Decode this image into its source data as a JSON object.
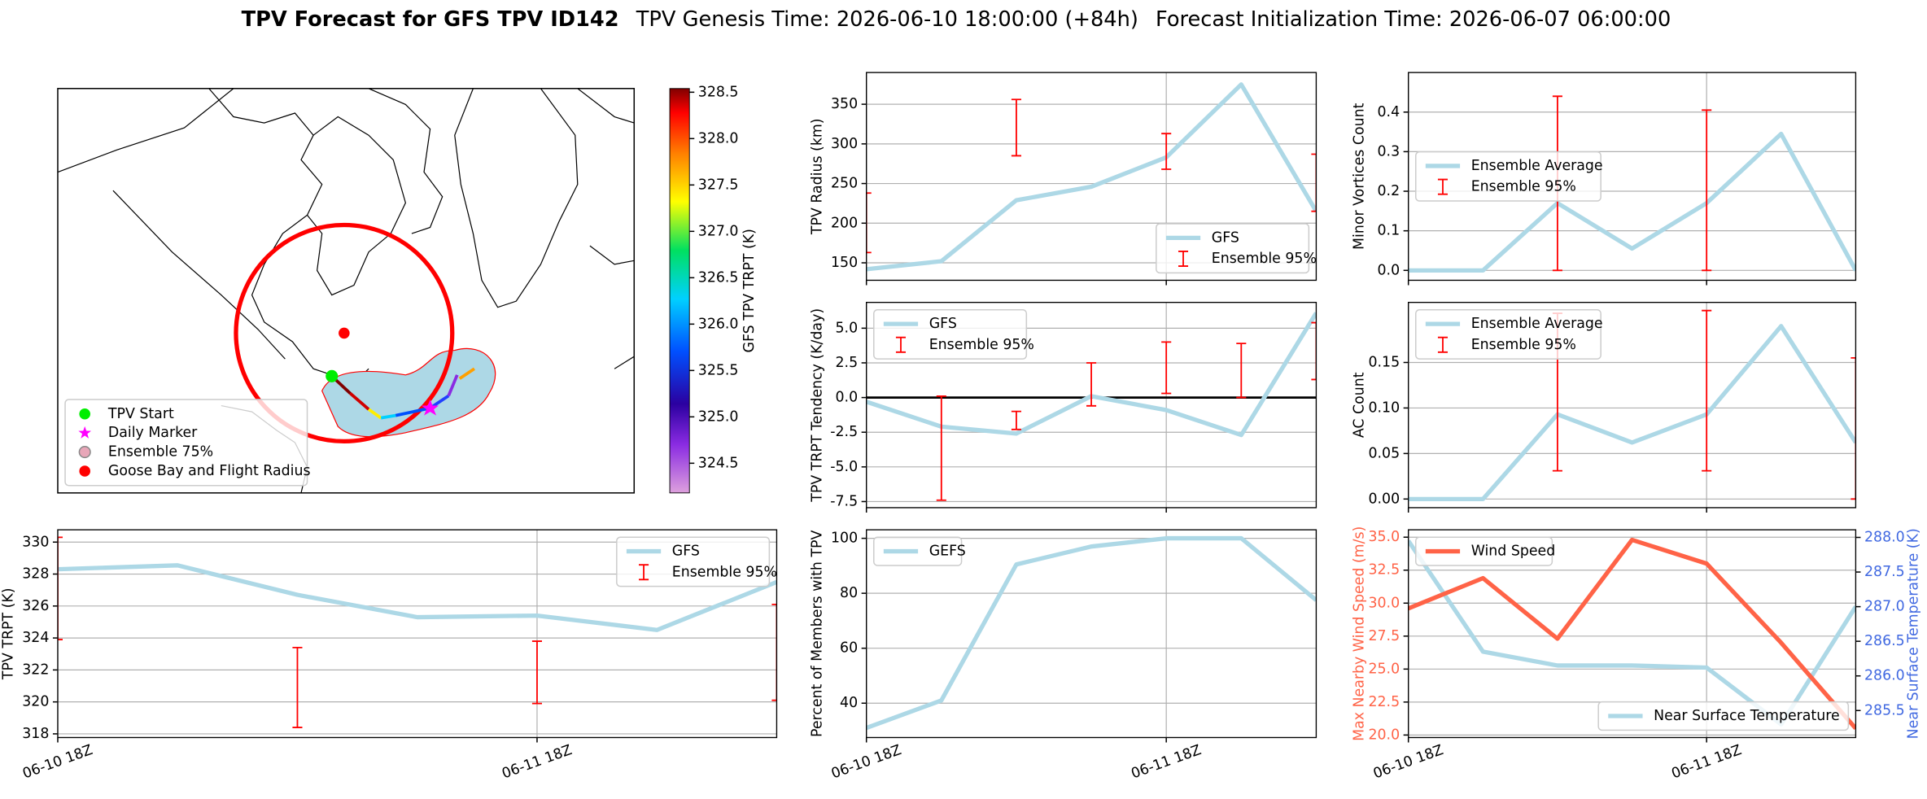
{
  "figure_title": {
    "main": "TPV Forecast for GFS TPV ID142",
    "genesis": "TPV Genesis Time: 2026-06-10 18:00:00 (+84h)",
    "init": "Forecast Initialization Time: 2026-06-07 06:00:00"
  },
  "chart_data": [
    {
      "type": "map",
      "legend_loc": "lower left",
      "legend": [
        {
          "name": "TPV Start",
          "color": "#00ee00",
          "marker": "circle"
        },
        {
          "name": "Daily Marker",
          "color": "#ff00ff",
          "marker": "star"
        },
        {
          "name": "Ensemble 75%",
          "color": "#e8a6b8",
          "edgecolor": "#888888",
          "marker": "circle"
        },
        {
          "name": "Goose Bay and Flight Radius",
          "color": "#ff0000",
          "marker": "circle"
        }
      ],
      "colorbar": {
        "label": "GFS TPV TRPT (K)",
        "lim": [
          324.18,
          328.54
        ],
        "ticks": [
          324.5,
          {
            "value": 325,
            "label": "325.0"
          },
          325.5,
          {
            "value": 326,
            "label": "326.0"
          },
          326.5,
          {
            "value": 327,
            "label": "327.0"
          },
          327.5,
          {
            "value": 328,
            "label": "328.0"
          },
          328.5
        ]
      }
    },
    {
      "type": "line",
      "ylabel": "TPV Radius (km)",
      "ylim": [
        128,
        390
      ],
      "yticks": [
        150,
        200,
        250,
        300,
        350
      ],
      "grid": true,
      "legend": "lower right",
      "series": [
        {
          "name": "GFS",
          "color": "#add8e6",
          "values": [
            142,
            152,
            229,
            246,
            283,
            375,
            215
          ]
        },
        {
          "name": "Ensemble 95%",
          "color": "#ff0000",
          "type": "errorbar",
          "low": [
            163,
            null,
            285,
            null,
            268,
            null,
            215
          ],
          "high": [
            238,
            null,
            356,
            null,
            313,
            null,
            287
          ]
        }
      ]
    },
    {
      "type": "line",
      "ylabel": "Minor Vortices Count",
      "ylim": [
        -0.025,
        0.5
      ],
      "yticks": [
        {
          "value": 0,
          "label": "0.0"
        },
        0.1,
        0.2,
        0.3,
        0.4
      ],
      "grid": true,
      "legend": "center left",
      "series": [
        {
          "name": "Ensemble Average",
          "color": "#add8e6",
          "values": [
            0,
            0,
            0.17,
            0.055,
            0.17,
            0.345,
            0
          ]
        },
        {
          "name": "Ensemble 95%",
          "color": "#ff0000",
          "type": "errorbar",
          "low": [
            null,
            null,
            0,
            null,
            0,
            null,
            null
          ],
          "high": [
            null,
            null,
            0.44,
            null,
            0.405,
            null,
            null
          ]
        }
      ]
    },
    {
      "type": "line",
      "ylabel": "TPV TRPT Tendency (K/day)",
      "ylim": [
        -7.94,
        6.86
      ],
      "yticks": [
        {
          "value": 5,
          "label": "5.0"
        },
        2.5,
        {
          "value": 0,
          "label": "0.0"
        },
        -2.5,
        {
          "value": -5,
          "label": "-5.0"
        },
        -7.5
      ],
      "grid": true,
      "zero_line": true,
      "legend": "upper left",
      "series": [
        {
          "name": "GFS",
          "color": "#add8e6",
          "values": [
            -0.3,
            -2.1,
            -2.6,
            0.1,
            -0.9,
            -2.7,
            6.1
          ]
        },
        {
          "name": "Ensemble 95%",
          "color": "#ff0000",
          "type": "errorbar",
          "low": [
            null,
            -7.4,
            -2.3,
            -0.6,
            0.3,
            0.0,
            1.3
          ],
          "high": [
            null,
            0.1,
            -1.0,
            2.5,
            4.0,
            3.9,
            5.4
          ]
        }
      ]
    },
    {
      "type": "line",
      "ylabel": "AC Count",
      "ylim": [
        -0.0095,
        0.216
      ],
      "yticks": [
        {
          "value": 0,
          "label": "0.00"
        },
        0.05,
        {
          "value": 0.1,
          "label": "0.10"
        },
        0.15
      ],
      "grid": true,
      "legend": "upper left",
      "series": [
        {
          "name": "Ensemble Average",
          "color": "#add8e6",
          "values": [
            0,
            0,
            0.093,
            0.062,
            0.093,
            0.19,
            0.062
          ]
        },
        {
          "name": "Ensemble 95%",
          "color": "#ff0000",
          "type": "errorbar",
          "low": [
            null,
            null,
            0.031,
            null,
            0.031,
            null,
            0
          ],
          "high": [
            null,
            null,
            0.204,
            null,
            0.207,
            null,
            0.155
          ]
        }
      ]
    },
    {
      "type": "line",
      "ylabel": "TPV TRPT (K)",
      "ylim": [
        317.77,
        330.77
      ],
      "yticks": [
        318,
        320,
        322,
        324,
        326,
        328,
        330
      ],
      "grid": true,
      "legend": "upper right",
      "categories": [
        "06-10 18Z",
        null,
        null,
        null,
        "06-11 18Z",
        null,
        null
      ],
      "series": [
        {
          "name": "GFS",
          "color": "#add8e6",
          "values": [
            328.3,
            328.55,
            326.7,
            325.3,
            325.4,
            324.5,
            327.5
          ]
        },
        {
          "name": "Ensemble 95%",
          "color": "#ff0000",
          "type": "errorbar",
          "low": [
            323.9,
            null,
            318.4,
            null,
            319.9,
            null,
            320.1
          ],
          "high": [
            330.3,
            null,
            323.4,
            null,
            323.8,
            null,
            326.1
          ]
        }
      ]
    },
    {
      "type": "line",
      "ylabel": "Percent of Members with TPV",
      "ylim": [
        27.5,
        103.1
      ],
      "yticks": [
        40,
        60,
        80,
        100
      ],
      "grid": true,
      "legend": "upper left",
      "categories": [
        "06-10 18Z",
        null,
        null,
        null,
        "06-11 18Z",
        null,
        null
      ],
      "series": [
        {
          "name": "GEFS",
          "color": "#add8e6",
          "values": [
            31,
            41,
            90.5,
            97,
            100,
            100,
            77.5
          ]
        }
      ]
    },
    {
      "type": "line",
      "ylabel": "Max Nearby Wind Speed (m/s)",
      "ycolor": "#ff6347",
      "y2label": "Near Surface Temperature (K)",
      "y2color": "#4169e1",
      "ylim": [
        19.81,
        35.56
      ],
      "yticks": [
        {
          "value": 20,
          "label": "20.0"
        },
        22.5,
        {
          "value": 25,
          "label": "25.0"
        },
        27.5,
        {
          "value": 30,
          "label": "30.0"
        },
        32.5,
        {
          "value": 35,
          "label": "35.0"
        }
      ],
      "y2lim": [
        285.11,
        288.11
      ],
      "y2ticks": [
        285.5,
        {
          "value": 286,
          "label": "286.0"
        },
        286.5,
        {
          "value": 287,
          "label": "287.0"
        },
        287.5,
        {
          "value": 288,
          "label": "288.0"
        }
      ],
      "grid": true,
      "legend": "upper left",
      "categories": [
        "06-10 18Z",
        null,
        null,
        null,
        "06-11 18Z",
        null,
        null
      ],
      "series": [
        {
          "name": "Near Surface Temperature",
          "color": "#add8e6",
          "axis": "y2",
          "legend": "lower right",
          "values": [
            287.95,
            286.35,
            286.15,
            286.15,
            286.12,
            285.3,
            287.0
          ]
        },
        {
          "name": "Wind Speed",
          "color": "#ff6347",
          "values": [
            29.6,
            31.9,
            27.3,
            34.8,
            33.0,
            27.0,
            20.5
          ]
        }
      ]
    }
  ]
}
